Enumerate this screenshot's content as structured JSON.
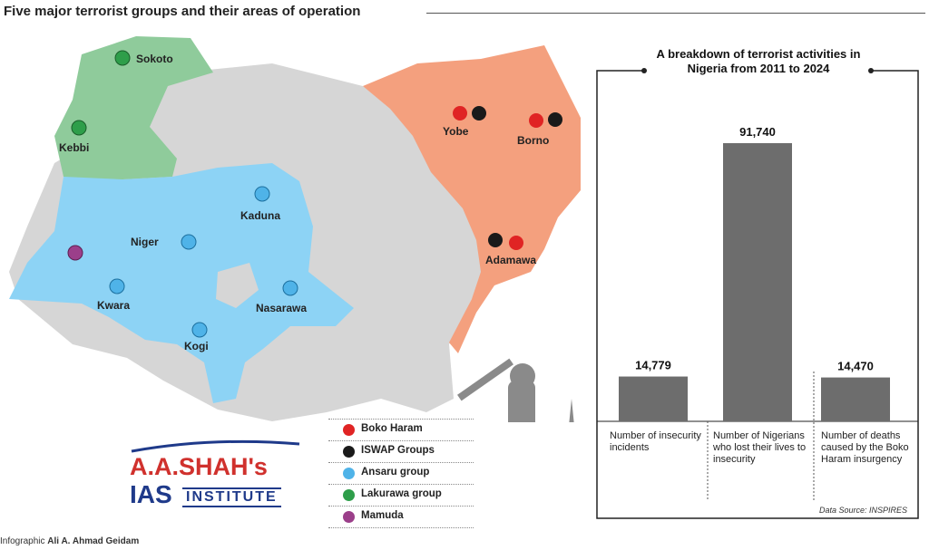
{
  "header": {
    "title": "Five major terrorist groups and their areas of operation"
  },
  "legend": [
    {
      "label": "Boko Haram",
      "color": "#e02424"
    },
    {
      "label": "ISWAP Groups",
      "color": "#1a1a1a"
    },
    {
      "label": "Ansaru group",
      "color": "#4fb3e8"
    },
    {
      "label": "Lakurawa group",
      "color": "#2e9e4a"
    },
    {
      "label": "Mamuda",
      "color": "#9b3f8a"
    }
  ],
  "map": {
    "states": [
      {
        "name": "Sokoto"
      },
      {
        "name": "Kebbi"
      },
      {
        "name": "Yobe"
      },
      {
        "name": "Borno"
      },
      {
        "name": "Kaduna"
      },
      {
        "name": "Niger"
      },
      {
        "name": "Adamawa"
      },
      {
        "name": "Kwara"
      },
      {
        "name": "Nasarawa"
      },
      {
        "name": "Kogi"
      }
    ],
    "region_colors": {
      "lakurawa": "#8fcb9b",
      "ansaru": "#8dd3f5",
      "boko": "#f4a07e",
      "base": "#d6d6d6"
    }
  },
  "logo": {
    "line1": "A.A.SHAH's",
    "line2": "IAS",
    "line3": "INSTITUTE"
  },
  "credit": {
    "prefix": "Infographic ",
    "author": "Ali A. Ahmad Geidam"
  },
  "chart_data": {
    "type": "bar",
    "title": "A breakdown of terrorist activities in Nigeria from 2011 to 2024",
    "categories": [
      "Number of insecurity incidents",
      "Number of Nigerians who lost their lives to insecurity",
      "Number of deaths caused by the Boko Haram insurgency"
    ],
    "values": [
      14779,
      91740,
      14470
    ],
    "value_labels": [
      "14,779",
      "91,740",
      "14,470"
    ],
    "bar_color": "#6d6d6d",
    "source": "Data Source: INSPIRES"
  }
}
